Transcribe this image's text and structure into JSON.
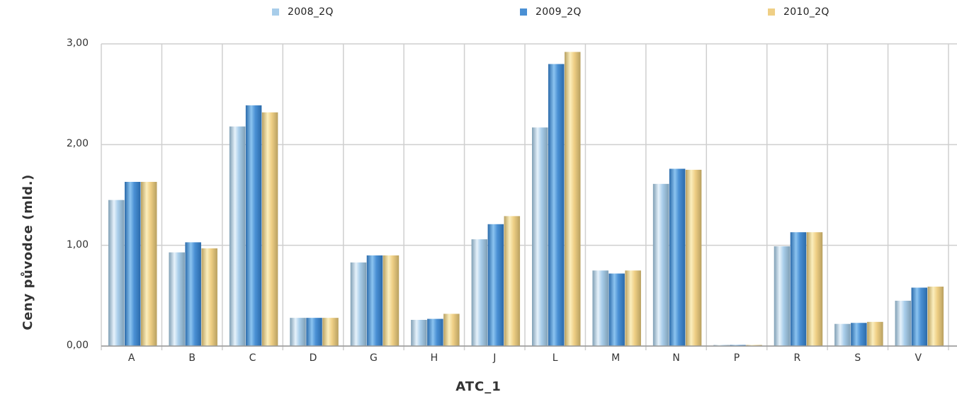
{
  "legend": [
    "2008_2Q",
    "2009_2Q",
    "2010_2Q"
  ],
  "chart_data": {
    "type": "bar",
    "title": "",
    "xlabel": "ATC_1",
    "ylabel": "Ceny původce (mld.)",
    "categories": [
      "A",
      "B",
      "C",
      "D",
      "G",
      "H",
      "J",
      "L",
      "M",
      "N",
      "P",
      "R",
      "S",
      "V"
    ],
    "ylim": [
      0,
      3
    ],
    "yticks": [
      "0,00",
      "1,00",
      "2,00",
      "3,00"
    ],
    "grid": true,
    "legend_position": "top",
    "series": [
      {
        "name": "2008_2Q",
        "color": "#a8cdea",
        "values": [
          1.45,
          0.93,
          2.18,
          0.28,
          0.83,
          0.26,
          1.06,
          2.17,
          0.75,
          1.61,
          0.01,
          0.99,
          0.22,
          0.45
        ]
      },
      {
        "name": "2009_2Q",
        "color": "#4a90d4",
        "values": [
          1.63,
          1.03,
          2.39,
          0.28,
          0.9,
          0.27,
          1.21,
          2.8,
          0.72,
          1.76,
          0.01,
          1.13,
          0.23,
          0.58
        ]
      },
      {
        "name": "2010_2Q",
        "color": "#efcf85",
        "values": [
          1.63,
          0.97,
          2.32,
          0.28,
          0.9,
          0.32,
          1.29,
          2.92,
          0.75,
          1.75,
          0.01,
          1.13,
          0.24,
          0.59
        ]
      }
    ]
  }
}
